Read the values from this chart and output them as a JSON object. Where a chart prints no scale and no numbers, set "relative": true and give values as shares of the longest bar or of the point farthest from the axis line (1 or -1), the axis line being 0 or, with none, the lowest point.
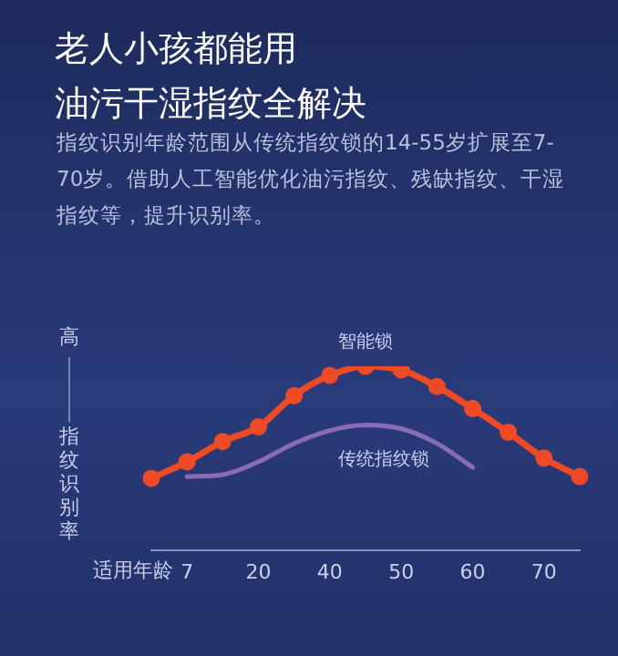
{
  "chart_data": {
    "type": "line",
    "title": "老人小孩都能用油污干湿指纹全解决",
    "subtitle": "指纹识别年龄范围从传统指纹锁的14-55岁扩展至7-70岁。借助人工智能优化油污指纹、残缺指纹、干湿指纹等，提升识别率。",
    "xlabel": "适用年龄",
    "ylabel": "指纹识别率",
    "annotations": [
      "高"
    ],
    "relative": true,
    "grid": false,
    "legend": false,
    "line_style": "solid",
    "categories": [
      null,
      "7",
      null,
      "20",
      null,
      "40",
      null,
      "50",
      null,
      "60",
      null,
      "70",
      null
    ],
    "series": [
      {
        "name": "智能锁",
        "color": "#ee4a25",
        "marker": "circle",
        "values": [
          0.39,
          0.48,
          0.59,
          0.67,
          0.84,
          0.95,
          1,
          0.98,
          0.89,
          0.77,
          0.64,
          0.5,
          0.4
        ]
      },
      {
        "name": "传统指纹锁",
        "color": "#8a6bb8",
        "values": [
          null,
          0.4,
          0.41,
          0.48,
          0.58,
          0.65,
          0.68,
          0.66,
          0.58,
          0.45,
          null,
          null,
          null
        ]
      }
    ]
  }
}
